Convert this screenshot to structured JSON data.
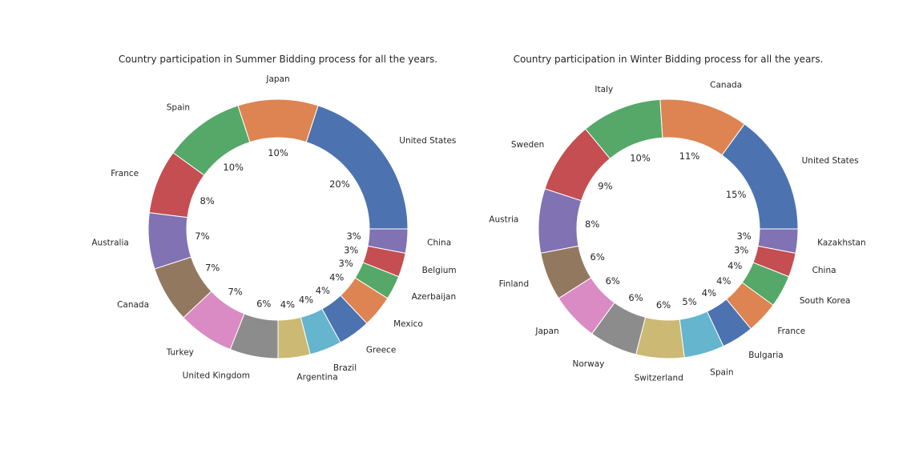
{
  "chart_data": [
    {
      "type": "pie",
      "donut": true,
      "title": "Country participation in Summer Bidding process for all the years.",
      "start_angle_deg": 0,
      "direction": "counterclockwise",
      "slices": [
        {
          "label": "United States",
          "pct_label": "20%",
          "value": 20,
          "color": "#4c72b0"
        },
        {
          "label": "Japan",
          "pct_label": "10%",
          "value": 10,
          "color": "#dd8452"
        },
        {
          "label": "Spain",
          "pct_label": "10%",
          "value": 10,
          "color": "#55a868"
        },
        {
          "label": "France",
          "pct_label": "8%",
          "value": 8,
          "color": "#c44e52"
        },
        {
          "label": "Australia",
          "pct_label": "7%",
          "value": 7,
          "color": "#8172b3"
        },
        {
          "label": "Canada",
          "pct_label": "7%",
          "value": 7,
          "color": "#937860"
        },
        {
          "label": "Turkey",
          "pct_label": "7%",
          "value": 7,
          "color": "#da8bc3"
        },
        {
          "label": "United Kingdom",
          "pct_label": "6%",
          "value": 6,
          "color": "#8c8c8c"
        },
        {
          "label": "Argentina",
          "pct_label": "4%",
          "value": 4,
          "color": "#ccb974"
        },
        {
          "label": "Brazil",
          "pct_label": "4%",
          "value": 4,
          "color": "#64b5cd"
        },
        {
          "label": "Greece",
          "pct_label": "4%",
          "value": 4,
          "color": "#4c72b0"
        },
        {
          "label": "Mexico",
          "pct_label": "4%",
          "value": 4,
          "color": "#dd8452"
        },
        {
          "label": "Azerbaijan",
          "pct_label": "3%",
          "value": 3,
          "color": "#55a868"
        },
        {
          "label": "Belgium",
          "pct_label": "3%",
          "value": 3,
          "color": "#c44e52"
        },
        {
          "label": "China",
          "pct_label": "3%",
          "value": 3,
          "color": "#8172b3"
        }
      ]
    },
    {
      "type": "pie",
      "donut": true,
      "title": "Country participation in Winter Bidding process for all the years.",
      "start_angle_deg": 0,
      "direction": "counterclockwise",
      "slices": [
        {
          "label": "United States",
          "pct_label": "15%",
          "value": 15,
          "color": "#4c72b0"
        },
        {
          "label": "Canada",
          "pct_label": "11%",
          "value": 11,
          "color": "#dd8452"
        },
        {
          "label": "Italy",
          "pct_label": "10%",
          "value": 10,
          "color": "#55a868"
        },
        {
          "label": "Sweden",
          "pct_label": "9%",
          "value": 9,
          "color": "#c44e52"
        },
        {
          "label": "Austria",
          "pct_label": "8%",
          "value": 8,
          "color": "#8172b3"
        },
        {
          "label": "Finland",
          "pct_label": "6%",
          "value": 6,
          "color": "#937860"
        },
        {
          "label": "Japan",
          "pct_label": "6%",
          "value": 6,
          "color": "#da8bc3"
        },
        {
          "label": "Norway",
          "pct_label": "6%",
          "value": 6,
          "color": "#8c8c8c"
        },
        {
          "label": "Switzerland",
          "pct_label": "6%",
          "value": 6,
          "color": "#ccb974"
        },
        {
          "label": "Spain",
          "pct_label": "5%",
          "value": 5,
          "color": "#64b5cd"
        },
        {
          "label": "Bulgaria",
          "pct_label": "4%",
          "value": 4,
          "color": "#4c72b0"
        },
        {
          "label": "France",
          "pct_label": "4%",
          "value": 4,
          "color": "#dd8452"
        },
        {
          "label": "South Korea",
          "pct_label": "4%",
          "value": 4,
          "color": "#55a868"
        },
        {
          "label": "China",
          "pct_label": "3%",
          "value": 3,
          "color": "#c44e52"
        },
        {
          "label": "Kazakhstan",
          "pct_label": "3%",
          "value": 3,
          "color": "#8172b3"
        }
      ]
    }
  ]
}
